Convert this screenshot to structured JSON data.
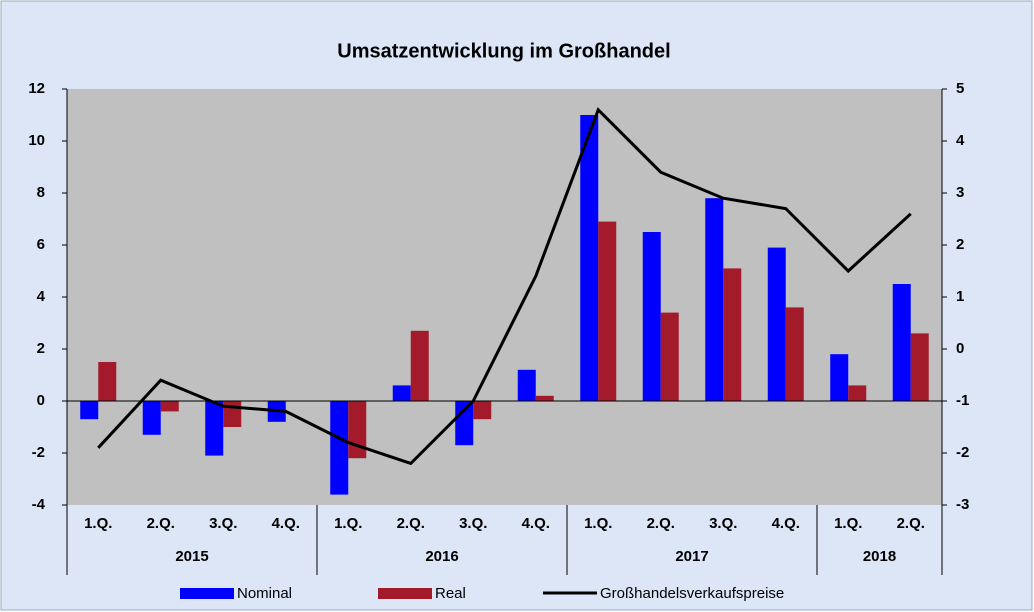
{
  "chart_data": {
    "type": "bar_line",
    "title": "Umsatzentwicklung im Großhandel",
    "categories": [
      "1.Q.",
      "2.Q.",
      "3.Q.",
      "4.Q.",
      "1.Q.",
      "2.Q.",
      "3.Q.",
      "4.Q.",
      "1.Q.",
      "2.Q.",
      "3.Q.",
      "4.Q.",
      "1.Q.",
      "2.Q."
    ],
    "x_groups": [
      {
        "label": "2015",
        "count": 4
      },
      {
        "label": "2016",
        "count": 4
      },
      {
        "label": "2017",
        "count": 4
      },
      {
        "label": "2018",
        "count": 2
      }
    ],
    "series": [
      {
        "name": "Nominal",
        "type": "bar",
        "color": "#0000ff",
        "values": [
          -0.7,
          -1.3,
          -2.1,
          -0.8,
          -3.6,
          0.6,
          -1.7,
          1.2,
          11.0,
          6.5,
          7.8,
          5.9,
          1.8,
          4.5
        ]
      },
      {
        "name": "Real",
        "type": "bar",
        "color": "#a31b2b",
        "values": [
          1.5,
          -0.4,
          -1.0,
          0.0,
          -2.2,
          2.7,
          -0.7,
          0.2,
          6.9,
          3.4,
          5.1,
          3.6,
          0.6,
          2.6
        ]
      },
      {
        "name": "Großhandelsverkaufspreise",
        "type": "line",
        "axis": "y2",
        "color": "#000000",
        "values": [
          -1.9,
          -0.6,
          -1.1,
          -1.2,
          -1.8,
          -2.2,
          -1.0,
          1.4,
          4.6,
          3.4,
          2.9,
          2.7,
          1.5,
          2.6
        ]
      }
    ],
    "ylim": [
      -4,
      12
    ],
    "yticks": [
      -4,
      -2,
      0,
      2,
      4,
      6,
      8,
      10,
      12
    ],
    "y2lim": [
      -3,
      5
    ],
    "y2ticks": [
      -3,
      -2,
      -1,
      0,
      1,
      2,
      3,
      4,
      5
    ],
    "legend": "bottom"
  }
}
